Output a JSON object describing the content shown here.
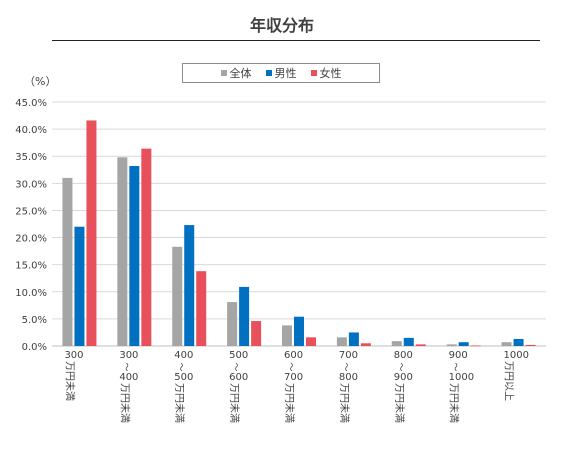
{
  "chart_data": {
    "type": "bar",
    "title": "年収分布",
    "unit_label": "（%）",
    "xlabel": "",
    "ylabel": "",
    "ylim": [
      0,
      45
    ],
    "y_ticks": [
      "0.0%",
      "5.0%",
      "10.0%",
      "15.0%",
      "20.0%",
      "25.0%",
      "30.0%",
      "35.0%",
      "40.0%",
      "45.0%"
    ],
    "grid": true,
    "legend_position": "top",
    "categories": [
      [
        "300",
        "万円未満"
      ],
      [
        "300",
        "～",
        "400",
        "万円未満"
      ],
      [
        "400",
        "～",
        "500",
        "万円未満"
      ],
      [
        "500",
        "～",
        "600",
        "万円未満"
      ],
      [
        "600",
        "～",
        "700",
        "万円未満"
      ],
      [
        "700",
        "～",
        "800",
        "万円未満"
      ],
      [
        "800",
        "～",
        "900",
        "万円未満"
      ],
      [
        "900",
        "～",
        "1000",
        "万円未満"
      ],
      [
        "1000",
        "万円以上"
      ]
    ],
    "series": [
      {
        "name": "全体",
        "color": "#a5a5a5",
        "values": [
          31.0,
          34.8,
          18.3,
          8.1,
          3.8,
          1.6,
          0.9,
          0.3,
          0.7
        ]
      },
      {
        "name": "男性",
        "color": "#0070c0",
        "values": [
          22.0,
          33.2,
          22.3,
          10.9,
          5.4,
          2.5,
          1.5,
          0.7,
          1.3
        ]
      },
      {
        "name": "女性",
        "color": "#e8505b",
        "values": [
          41.6,
          36.4,
          13.8,
          4.6,
          1.6,
          0.5,
          0.3,
          0.1,
          0.2
        ]
      }
    ]
  }
}
